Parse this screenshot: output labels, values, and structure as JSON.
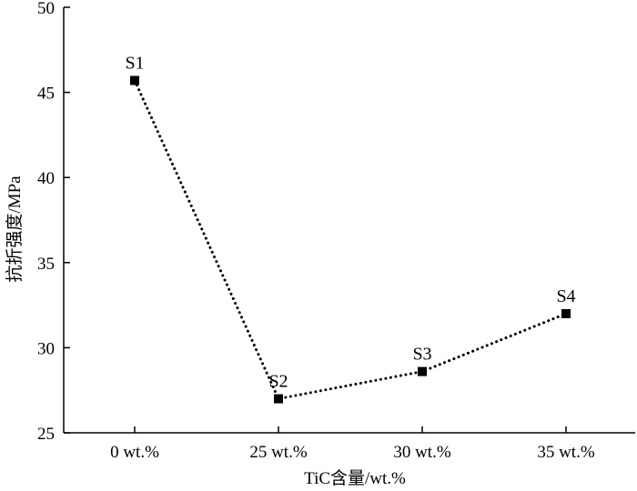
{
  "chart_data": {
    "type": "line",
    "title": "",
    "xlabel": "TiC含量/wt.%",
    "ylabel": "抗折强度/MPa",
    "categories": [
      "0 wt.%",
      "25 wt.%",
      "30 wt.%",
      "35 wt.%"
    ],
    "series": [
      {
        "values": [
          45.7,
          27.0,
          28.6,
          32.0
        ],
        "point_labels": [
          "S1",
          "S2",
          "S3",
          "S4"
        ],
        "line_style": "dotted",
        "marker": "square",
        "color": "#000000"
      }
    ],
    "ylim": [
      25,
      50
    ],
    "yticks": [
      "25",
      "30",
      "35",
      "40",
      "45",
      "50"
    ],
    "grid": false,
    "legend": "none"
  }
}
